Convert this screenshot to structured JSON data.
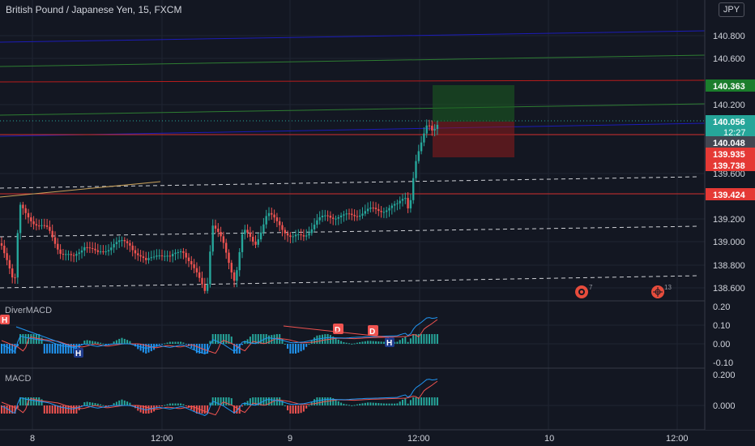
{
  "chart_title": "British Pound / Japanese Yen, 15, FXCM",
  "currency_button": "JPY",
  "colors": {
    "background": "#131722",
    "up": "#26a69a",
    "down": "#ef5350",
    "grid": "#1f2432",
    "blue_channel": "#1c1cb8",
    "green_channel": "#2e7d32",
    "red_level": "#d32f2f",
    "macd_line": "#2196f3",
    "signal_line": "#ef5350"
  },
  "price_axis": {
    "ticks": [
      "140.800",
      "140.600",
      "140.200",
      "139.600",
      "139.200",
      "139.000",
      "138.800",
      "138.600"
    ],
    "tags": [
      {
        "label": "140.363",
        "color": "#1b7d2c"
      },
      {
        "label": "140.056",
        "color": "#26a69a"
      },
      {
        "label": "12:27",
        "color": "#26a69a"
      },
      {
        "label": "140.048",
        "color": "#434651"
      },
      {
        "label": "139.935",
        "color": "#e53935"
      },
      {
        "label": "139.738",
        "color": "#e53935"
      },
      {
        "label": "139.424",
        "color": "#e53935"
      }
    ]
  },
  "time_axis": {
    "labels": [
      "8",
      "12:00",
      "9",
      "12:00",
      "10",
      "12:00"
    ]
  },
  "indicators": {
    "divermacd": {
      "name": "DiverMACD",
      "ticks": [
        "0.20",
        "0.10",
        "0.00",
        "-0.10"
      ],
      "markers": [
        "H",
        "H",
        "D",
        "D",
        "H"
      ]
    },
    "macd": {
      "name": "MACD",
      "ticks": [
        "0.200",
        "0.000"
      ]
    }
  },
  "events": [
    {
      "count": "7",
      "icon": "economic-event-icon"
    },
    {
      "count": "13",
      "icon": "economic-event-icon"
    }
  ]
}
